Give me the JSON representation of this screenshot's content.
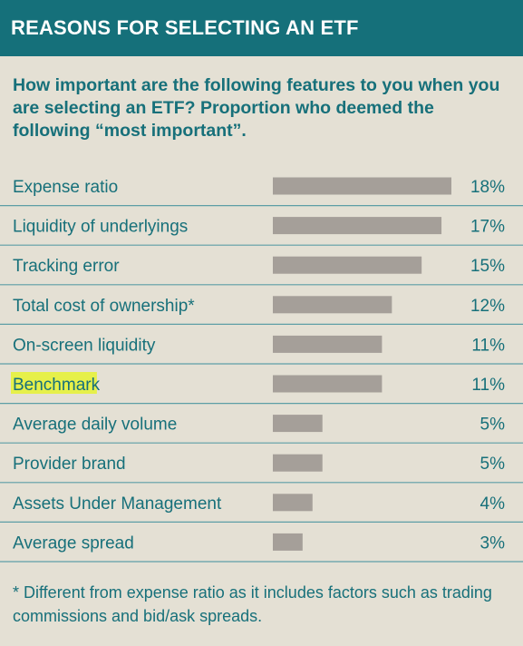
{
  "header": {
    "title": "REASONS FOR SELECTING AN ETF"
  },
  "question": "How important are the following features to you when you are selecting an ETF? Proportion who deemed the following “most important”.",
  "footnote": "* Different from expense ratio as it includes factors such as trading commissions and bid/ask spreads.",
  "colors": {
    "header_bg": "#15707a",
    "text_teal": "#17707a",
    "bar": "#a59f99",
    "divider": "#5d9ea6",
    "background": "#e4e0d4",
    "highlight": "#e6f04a"
  },
  "chart_data": {
    "type": "bar",
    "orientation": "horizontal",
    "categories": [
      "Expense ratio",
      "Liquidity of underlyings",
      "Tracking error",
      "Total cost of ownership*",
      "On-screen liquidity",
      "Benchmark",
      "Average daily volume",
      "Provider brand",
      "Assets Under Management",
      "Average spread"
    ],
    "values": [
      18,
      17,
      15,
      12,
      11,
      11,
      5,
      5,
      4,
      3
    ],
    "value_labels": [
      "18%",
      "17%",
      "15%",
      "12%",
      "11%",
      "11%",
      "5%",
      "5%",
      "4%",
      "3%"
    ],
    "unit": "%",
    "highlighted_category": "Benchmark",
    "xlim": [
      0,
      18
    ],
    "grid": false,
    "legend": "none"
  }
}
